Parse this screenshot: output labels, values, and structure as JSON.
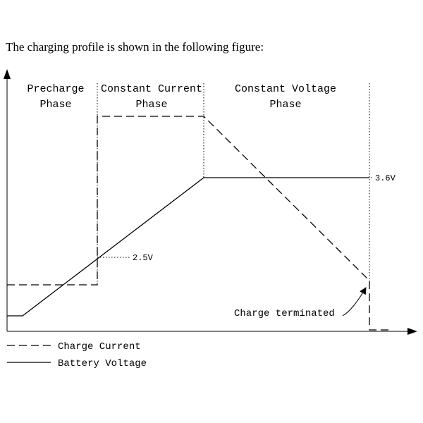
{
  "intro_text": "The charging profile is shown in the following figure:",
  "phases": {
    "precharge": [
      "Precharge",
      "Phase"
    ],
    "constant_current": [
      "Constant Current",
      "Phase"
    ],
    "constant_voltage": [
      "Constant Voltage",
      "Phase"
    ]
  },
  "voltage_labels": {
    "v_cc_threshold": "2.5V",
    "v_cv_level": "3.6V"
  },
  "annotation": "Charge terminated",
  "legend": {
    "current": "Charge Current",
    "voltage": "Battery Voltage"
  },
  "colors": {
    "line": "#000000",
    "background": "#ffffff"
  }
}
